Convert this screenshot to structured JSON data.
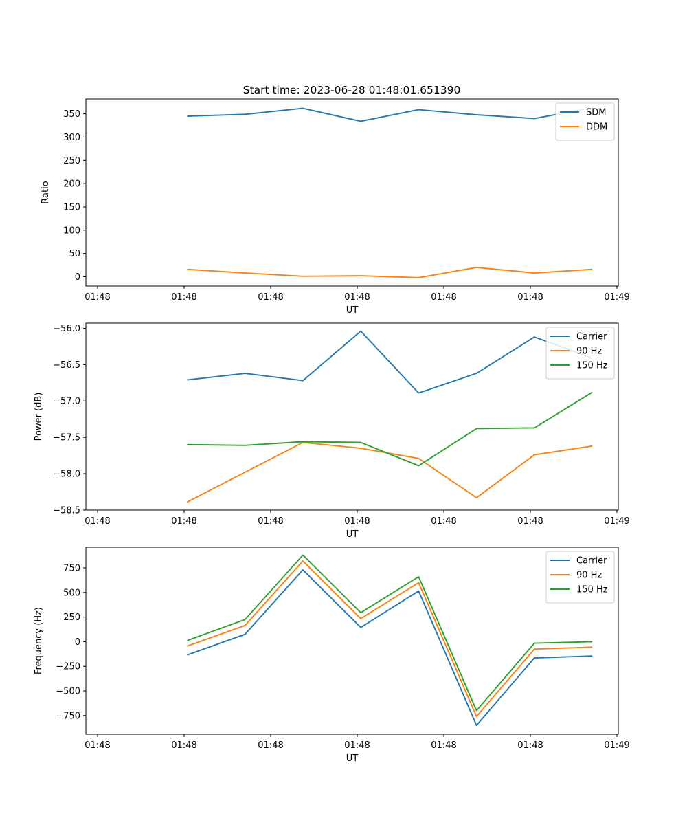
{
  "figure": {
    "title": "Start time: 2023-06-28 01:48:01.651390"
  },
  "chart_data": [
    {
      "type": "line",
      "title": "Start time: 2023-06-28 01:48:01.651390",
      "xlabel": "UT",
      "ylabel": "Ratio",
      "x_tick_labels": [
        "01:48",
        "01:48",
        "01:48",
        "01:48",
        "01:48",
        "01:48",
        "01:48"
      ],
      "x_tick_last": "01:49",
      "xlim": [
        -0.75,
        8.45
      ],
      "x": [
        1,
        2,
        3,
        4,
        5,
        6,
        7,
        8
      ],
      "ylim": [
        -20,
        382
      ],
      "yticks": [
        0,
        50,
        100,
        150,
        200,
        250,
        300,
        350
      ],
      "legend": "top-right",
      "series": [
        {
          "name": "SDM",
          "color": "#1f77b4",
          "values": [
            345,
            349,
            362,
            334,
            359,
            348,
            340,
            363
          ]
        },
        {
          "name": "DDM",
          "color": "#ff7f0e",
          "values": [
            16,
            8,
            1,
            2,
            -2,
            20,
            8,
            16
          ]
        }
      ]
    },
    {
      "type": "line",
      "xlabel": "UT",
      "ylabel": "Power (dB)",
      "x_tick_labels": [
        "01:48",
        "01:48",
        "01:48",
        "01:48",
        "01:48",
        "01:48",
        "01:48"
      ],
      "x_tick_last": "01:49",
      "xlim": [
        -0.75,
        8.45
      ],
      "x": [
        1,
        2,
        3,
        4,
        5,
        6,
        7,
        8
      ],
      "ylim": [
        -58.5,
        -55.93
      ],
      "yticks": [
        -58.5,
        -58.0,
        -57.5,
        -57.0,
        -56.5,
        -56.0
      ],
      "ytick_labels": [
        "−58.5",
        "−58.0",
        "−57.5",
        "−57.0",
        "−56.5",
        "−56.0"
      ],
      "legend": "top-right",
      "series": [
        {
          "name": "Carrier",
          "color": "#1f77b4",
          "values": [
            -56.71,
            -56.62,
            -56.72,
            -56.04,
            -56.89,
            -56.62,
            -56.12,
            -56.41
          ]
        },
        {
          "name": "90 Hz",
          "color": "#ff7f0e",
          "values": [
            -58.39,
            -57.98,
            -57.57,
            -57.65,
            -57.79,
            -58.33,
            -57.74,
            -57.62
          ]
        },
        {
          "name": "150 Hz",
          "color": "#2ca02c",
          "values": [
            -57.6,
            -57.61,
            -57.56,
            -57.57,
            -57.89,
            -57.38,
            -57.37,
            -56.88
          ]
        }
      ]
    },
    {
      "type": "line",
      "xlabel": "UT",
      "ylabel": "Frequency (Hz)",
      "x_tick_labels": [
        "01:48",
        "01:48",
        "01:48",
        "01:48",
        "01:48",
        "01:48",
        "01:48"
      ],
      "x_tick_last": "01:49",
      "xlim": [
        -0.75,
        8.45
      ],
      "x": [
        1,
        2,
        3,
        4,
        5,
        6,
        7,
        8
      ],
      "ylim": [
        -940,
        960
      ],
      "yticks": [
        -750,
        -500,
        -250,
        0,
        250,
        500,
        750
      ],
      "ytick_labels": [
        "−750",
        "−500",
        "−250",
        "0",
        "250",
        "500",
        "750"
      ],
      "legend": "top-right",
      "series": [
        {
          "name": "Carrier",
          "color": "#1f77b4",
          "values": [
            -135,
            75,
            730,
            145,
            515,
            -850,
            -165,
            -145
          ]
        },
        {
          "name": "90 Hz",
          "color": "#ff7f0e",
          "values": [
            -45,
            165,
            820,
            235,
            600,
            -760,
            -75,
            -55
          ]
        },
        {
          "name": "150 Hz",
          "color": "#2ca02c",
          "values": [
            12,
            225,
            880,
            295,
            660,
            -700,
            -15,
            0
          ]
        }
      ]
    }
  ]
}
